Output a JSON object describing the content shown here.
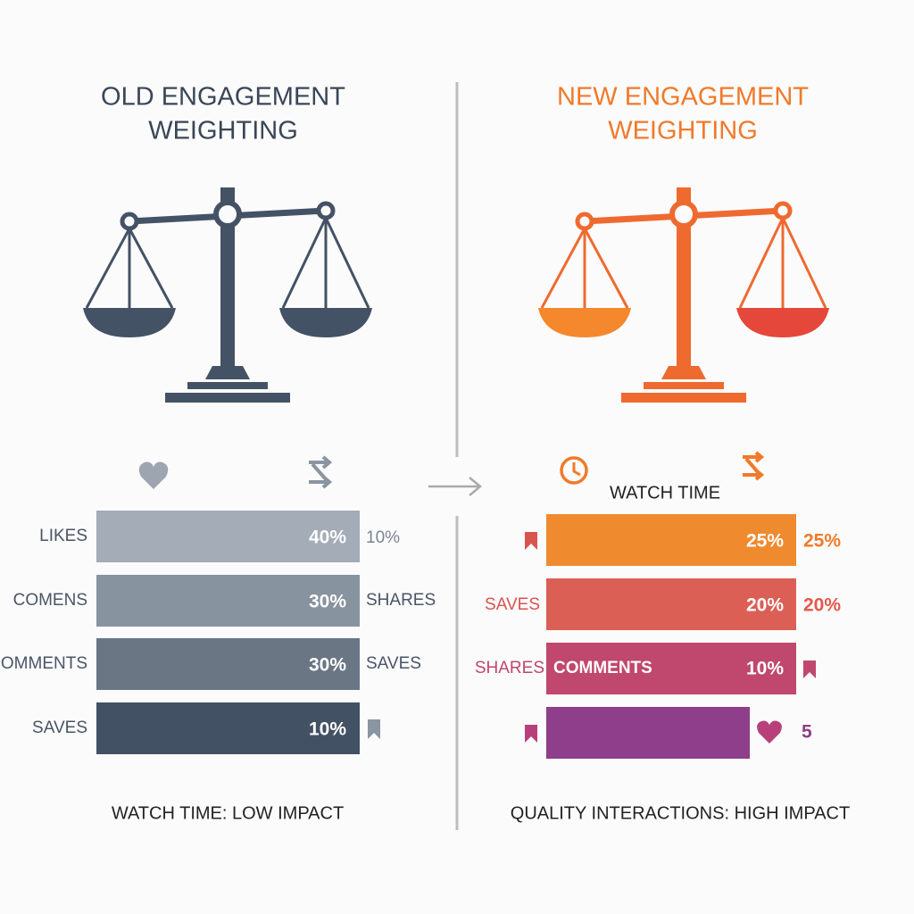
{
  "left": {
    "title_lines": [
      "OLD ENGAGEMENT",
      "WEIGHTING"
    ],
    "rows": [
      {
        "label": "LIKES",
        "value": "40%",
        "side": "10%"
      },
      {
        "label": "COMENS",
        "value": "30%",
        "side": "SHARES"
      },
      {
        "label": "COMMENTS",
        "value": "30%",
        "side": "SAVES"
      },
      {
        "label": "SAVES",
        "value": "10%"
      }
    ],
    "footer": "WATCH TIME: LOW IMPACT"
  },
  "right": {
    "title_lines": [
      "NEW ENGAGEMENT",
      "WEIGHTING"
    ],
    "header": "WATCH TIME",
    "rows": [
      {
        "value": "25%",
        "side": "25%"
      },
      {
        "label": "SAVES",
        "value": "20%",
        "side": "20%"
      },
      {
        "label": "SHARES",
        "inner": "COMMENTS",
        "value": "10%"
      },
      {
        "side": "5"
      }
    ],
    "footer": "QUALITY INTERACTIONS: HIGH IMPACT"
  }
}
